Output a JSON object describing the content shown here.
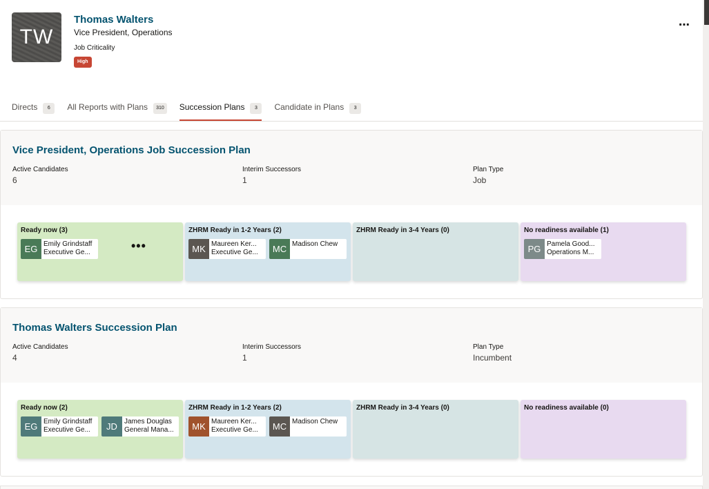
{
  "person": {
    "initials": "TW",
    "name": "Thomas Walters",
    "title": "Vice President, Operations",
    "criticality_label": "Job Criticality",
    "criticality_value": "High",
    "more": "⋯"
  },
  "tabs": [
    {
      "label": "Directs",
      "count": "6"
    },
    {
      "label": "All Reports with Plans",
      "count": "310"
    },
    {
      "label": "Succession Plans",
      "count": "3",
      "active": true
    },
    {
      "label": "Candidate in Plans",
      "count": "3"
    }
  ],
  "colors": {
    "brand_title": "#04536f",
    "accent": "#c74634",
    "lane_ready_now": "#d4eac3",
    "lane_1_2": "#d3e4ec",
    "lane_3_4": "#d6e4e4",
    "lane_none": "#e8daf0"
  },
  "plans": [
    {
      "title": "Vice President, Operations Job Succession Plan",
      "meta": [
        {
          "label": "Active Candidates",
          "value": "6"
        },
        {
          "label": "Interim Successors",
          "value": "1"
        },
        {
          "label": "Plan Type",
          "value": "Job"
        }
      ],
      "lanes": [
        {
          "title": "Ready now (3)",
          "more": "•••",
          "candidates": [
            {
              "initials": "EG",
              "name": "Emily Grindstaff",
              "role": "Executive Ge...",
              "color": "#4a7a57"
            }
          ]
        },
        {
          "title": "ZHRM Ready in 1-2 Years (2)",
          "candidates": [
            {
              "initials": "MK",
              "name": "Maureen Ker...",
              "role": "Executive Ge...",
              "color": "#5b5651"
            },
            {
              "initials": "MC",
              "name": "Madison Chew",
              "role": "",
              "color": "#4a7a57"
            }
          ]
        },
        {
          "title": "ZHRM Ready in 3-4 Years (0)",
          "candidates": []
        },
        {
          "title": "No readiness available (1)",
          "candidates": [
            {
              "initials": "PG",
              "name": "Pamela Good...",
              "role": "Operations M...",
              "color": "#7d8a89"
            }
          ]
        }
      ]
    },
    {
      "title": "Thomas Walters Succession Plan",
      "meta": [
        {
          "label": "Active Candidates",
          "value": "4"
        },
        {
          "label": "Interim Successors",
          "value": "1"
        },
        {
          "label": "Plan Type",
          "value": "Incumbent"
        }
      ],
      "lanes": [
        {
          "title": "Ready now (2)",
          "candidates": [
            {
              "initials": "EG",
              "name": "Emily Grindstaff",
              "role": "Executive Ge...",
              "color": "#4f7a7a"
            },
            {
              "initials": "JD",
              "name": "James Douglas",
              "role": "General Mana...",
              "color": "#4f7a7a"
            }
          ]
        },
        {
          "title": "ZHRM Ready in 1-2 Years (2)",
          "candidates": [
            {
              "initials": "MK",
              "name": "Maureen Ker...",
              "role": "Executive Ge...",
              "color": "#a0522d"
            },
            {
              "initials": "MC",
              "name": "Madison Chew",
              "role": "",
              "color": "#5b5651"
            }
          ]
        },
        {
          "title": "ZHRM Ready in 3-4 Years (0)",
          "candidates": []
        },
        {
          "title": "No readiness available (0)",
          "candidates": []
        }
      ]
    }
  ]
}
